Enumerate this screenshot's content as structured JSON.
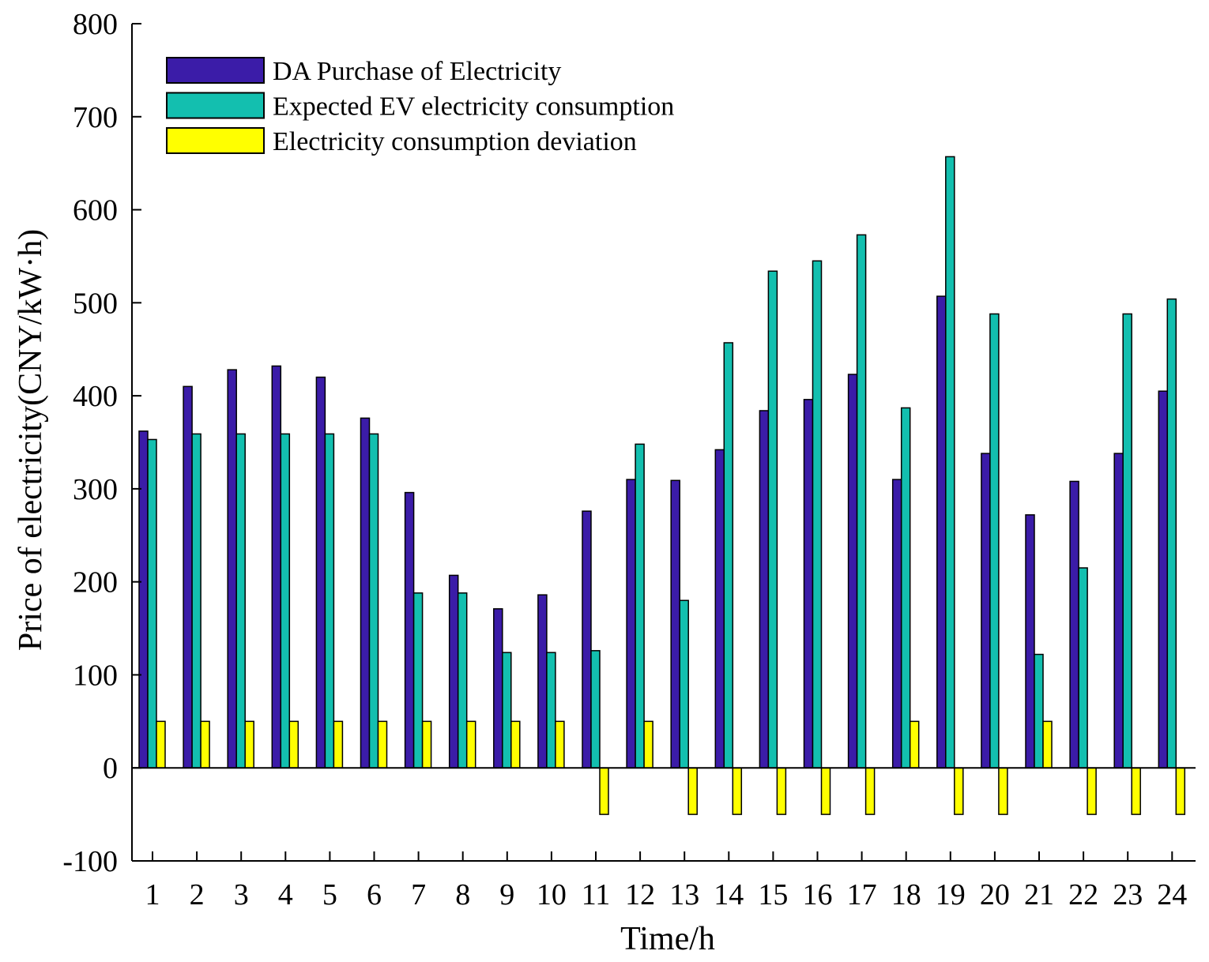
{
  "chart_data": {
    "type": "bar",
    "title": "",
    "xlabel": "Time/h",
    "ylabel": "Price of electricity(CNY/kW·h)",
    "ylim": [
      -100,
      800
    ],
    "yticks": [
      -100,
      0,
      100,
      200,
      300,
      400,
      500,
      600,
      700,
      800
    ],
    "categories": [
      "1",
      "2",
      "3",
      "4",
      "5",
      "6",
      "7",
      "8",
      "9",
      "10",
      "11",
      "12",
      "13",
      "14",
      "15",
      "16",
      "17",
      "18",
      "19",
      "20",
      "21",
      "22",
      "23",
      "24"
    ],
    "legend_position": "top-left",
    "series": [
      {
        "name": "DA Purchase of Electricity",
        "color": "#3B1CA8",
        "values": [
          362,
          410,
          428,
          432,
          420,
          376,
          296,
          207,
          171,
          186,
          276,
          310,
          309,
          342,
          384,
          396,
          423,
          310,
          507,
          338,
          272,
          308,
          338,
          405
        ]
      },
      {
        "name": "Expected EV electricity consumption",
        "color": "#13BFAF",
        "values": [
          353,
          359,
          359,
          359,
          359,
          359,
          188,
          188,
          124,
          124,
          126,
          348,
          180,
          457,
          534,
          545,
          573,
          387,
          657,
          488,
          122,
          215,
          488,
          504
        ]
      },
      {
        "name": "Electricity consumption deviation",
        "color": "#FFFF00",
        "values": [
          50,
          50,
          50,
          50,
          50,
          50,
          50,
          50,
          50,
          50,
          -50,
          50,
          -50,
          -50,
          -50,
          -50,
          -50,
          50,
          -50,
          -50,
          50,
          -50,
          -50,
          -50
        ]
      }
    ]
  }
}
